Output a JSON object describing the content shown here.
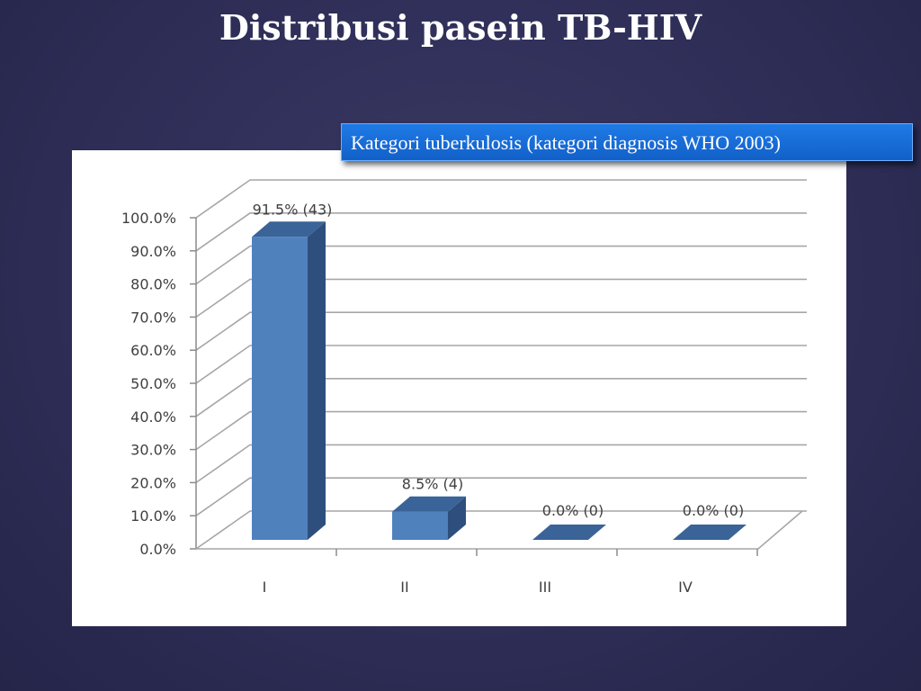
{
  "slide": {
    "title": "Distribusi pasein TB-HIV",
    "category_box": "Kategori tuberkulosis (kategori diagnosis WHO 2003)"
  },
  "colors": {
    "background": "#30305a",
    "bar_front": "#4f81bd",
    "bar_side": "#2e4f7d",
    "bar_top": "#3a6398",
    "category_box": "#1a6fdc"
  },
  "chart_data": {
    "type": "bar",
    "title": "Kategori tuberkulosis (kategori diagnosis WHO 2003)",
    "categories": [
      "I",
      "II",
      "III",
      "IV"
    ],
    "values": [
      91.5,
      8.5,
      0.0,
      0.0
    ],
    "counts": [
      43,
      4,
      0,
      0
    ],
    "data_labels": [
      "91.5% (43)",
      "8.5% (4)",
      "0.0% (0)",
      "0.0% (0)"
    ],
    "xlabel": "",
    "ylabel": "",
    "ylim": [
      0,
      100
    ],
    "yticks": [
      "0.0%",
      "10.0%",
      "20.0%",
      "30.0%",
      "40.0%",
      "50.0%",
      "60.0%",
      "70.0%",
      "80.0%",
      "90.0%",
      "100.0%"
    ],
    "grid": true,
    "style": "3d-column",
    "legend": "none"
  }
}
